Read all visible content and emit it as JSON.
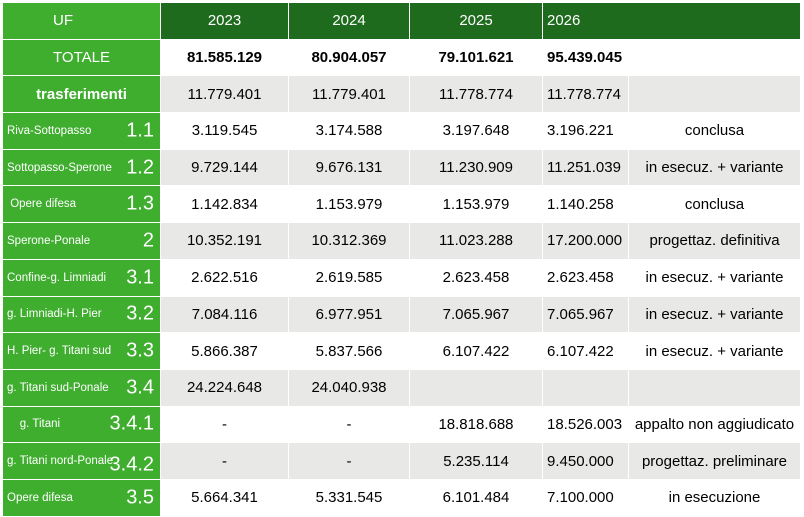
{
  "header": {
    "uf": "UF",
    "years": [
      "2023",
      "2024",
      "2025",
      "2026"
    ]
  },
  "totale": {
    "label": "TOTALE",
    "values": [
      "81.585.129",
      "80.904.057",
      "79.101.621",
      "95.439.045"
    ]
  },
  "trasferimenti": {
    "label": "trasferimenti",
    "values": [
      "11.779.401",
      "11.779.401",
      "11.778.774",
      "11.778.774"
    ]
  },
  "colors": {
    "dark_green": "#1e6b1e",
    "green": "#3fae2f",
    "red": "#e0251b",
    "stripe": "#e8e8e6"
  },
  "rows": [
    {
      "name": "Riva-Sottopasso",
      "code": "1.1",
      "values": [
        "3.119.545",
        "3.174.588",
        "3.197.648",
        "3.196.221"
      ],
      "status": "conclusa",
      "status_red": true
    },
    {
      "name": "Sottopasso-Sperone",
      "code": "1.2",
      "values": [
        "9.729.144",
        "9.676.131",
        "11.230.909",
        "11.251.039"
      ],
      "status": "in esecuz. + variante",
      "status_red": false
    },
    {
      "name": " Opere difesa",
      "code": "1.3",
      "values": [
        "1.142.834",
        "1.153.979",
        "1.153.979",
        "1.140.258"
      ],
      "status": "conclusa",
      "status_red": true
    },
    {
      "name": "Sperone-Ponale",
      "code": "2",
      "values": [
        "10.352.191",
        "10.312.369",
        "11.023.288",
        "17.200.000"
      ],
      "status": "progettaz. definitiva",
      "status_red": false
    },
    {
      "name": "Confine-g. Limniadi",
      "code": "3.1",
      "values": [
        "2.622.516",
        "2.619.585",
        "2.623.458",
        "2.623.458"
      ],
      "status": "in esecuz. + variante",
      "status_red": false
    },
    {
      "name": "g. Limniadi-H. Pier",
      "code": "3.2",
      "values": [
        "7.084.116",
        "6.977.951",
        "7.065.967",
        "7.065.967"
      ],
      "status": "in esecuz. + variante",
      "status_red": false
    },
    {
      "name": "H. Pier- g. Titani sud",
      "code": "3.3",
      "values": [
        "5.866.387",
        "5.837.566",
        "6.107.422",
        "6.107.422"
      ],
      "status": "in esecuz. + variante",
      "status_red": false
    },
    {
      "name": "g. Titani sud-Ponale",
      "code": "3.4",
      "values": [
        "24.224.648",
        "24.040.938",
        "",
        ""
      ],
      "status": "",
      "status_red": false
    },
    {
      "name": "    g. Titani",
      "code": "3.4.1",
      "values": [
        "-",
        "-",
        "18.818.688",
        "18.526.003"
      ],
      "status": "appalto non aggiudicato",
      "status_red": true
    },
    {
      "name": "g. Titani nord-Ponale",
      "code": "3.4.2",
      "values": [
        "-",
        "-",
        "5.235.114",
        "9.450.000"
      ],
      "status": "progettaz. preliminare",
      "status_red": false
    },
    {
      "name": "Opere difesa",
      "code": "3.5",
      "values": [
        "5.664.341",
        "5.331.545",
        "6.101.484",
        "7.100.000"
      ],
      "status": "in esecuzione",
      "status_red": false
    }
  ]
}
